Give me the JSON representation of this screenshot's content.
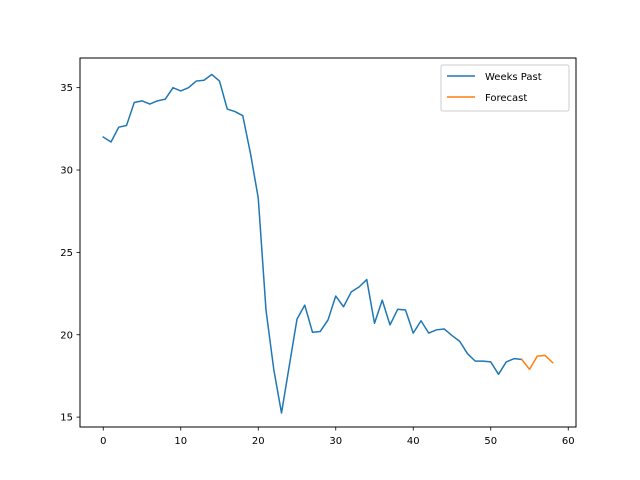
{
  "chart_data": {
    "type": "line",
    "title": "",
    "xlabel": "",
    "ylabel": "",
    "xlim": [
      -3.0,
      61.0
    ],
    "ylim": [
      14.4,
      36.8
    ],
    "xticks": [
      0,
      10,
      20,
      30,
      40,
      50,
      60
    ],
    "yticks": [
      15,
      20,
      25,
      30,
      35
    ],
    "grid": false,
    "legend_position": "top-right",
    "series": [
      {
        "name": "Weeks Past",
        "color": "#1f77b4",
        "x": [
          0,
          1,
          2,
          3,
          4,
          5,
          6,
          7,
          8,
          9,
          10,
          11,
          12,
          13,
          14,
          15,
          16,
          17,
          18,
          19,
          20,
          21,
          22,
          23,
          24,
          25,
          26,
          27,
          28,
          29,
          30,
          31,
          32,
          33,
          34,
          35,
          36,
          37,
          38,
          39,
          40,
          41,
          42,
          43,
          44,
          45,
          46,
          47,
          48,
          49,
          50,
          51,
          52,
          53,
          54
        ],
        "y": [
          32.0,
          31.7,
          32.6,
          32.7,
          34.1,
          34.2,
          34.0,
          34.2,
          34.3,
          35.0,
          34.8,
          35.0,
          35.4,
          35.45,
          35.8,
          35.4,
          33.7,
          33.55,
          33.3,
          31.0,
          28.3,
          21.5,
          17.9,
          15.25,
          18.1,
          20.95,
          21.8,
          20.15,
          20.2,
          20.9,
          22.35,
          21.7,
          22.6,
          22.9,
          23.35,
          20.7,
          22.1,
          20.6,
          21.55,
          21.5,
          20.1,
          20.85,
          20.1,
          20.3,
          20.35,
          19.95,
          19.6,
          18.85,
          18.4,
          18.4,
          18.35,
          17.6,
          18.35,
          18.55,
          18.5
        ]
      },
      {
        "name": "Forecast",
        "color": "#ff7f0e",
        "x": [
          54,
          55,
          56,
          57,
          58
        ],
        "y": [
          18.5,
          17.9,
          18.7,
          18.75,
          18.3
        ]
      }
    ]
  }
}
